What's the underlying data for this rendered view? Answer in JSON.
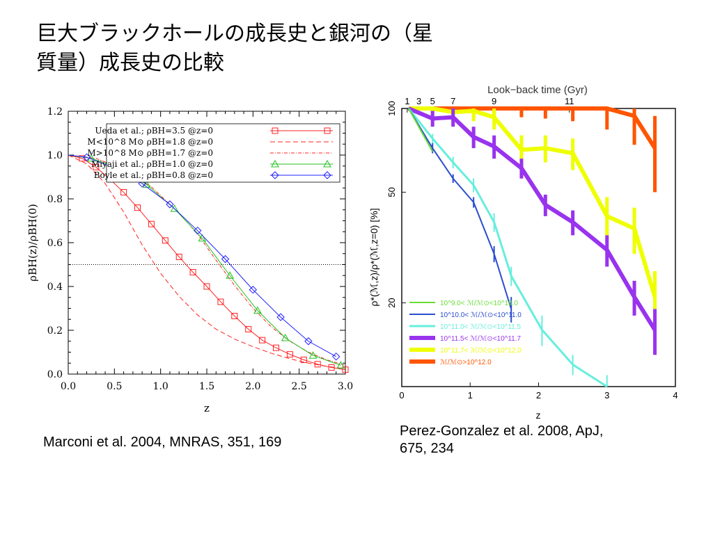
{
  "slide": {
    "title_line1": "巨大ブラックホールの成長史と銀河の（星",
    "title_line2": "質量）成長史の比較",
    "caption_left": "Marconi et al. 2004, MNRAS, 351, 169",
    "caption_right_line1": "Perez-Gonzalez et al. 2008, ApJ,",
    "caption_right_line2": "675, 234"
  },
  "chart_data": [
    {
      "type": "line",
      "xlabel": "z",
      "ylabel": "ρBH(z)/ρBH(0)",
      "xlim": [
        0,
        3
      ],
      "ylim": [
        0,
        1.2
      ],
      "xticks": [
        "0.0",
        "0.5",
        "1.0",
        "1.5",
        "2.0",
        "2.5",
        "3.0"
      ],
      "yticks": [
        "0.0",
        "0.2",
        "0.4",
        "0.6",
        "0.8",
        "1.0",
        "1.2"
      ],
      "hline": 0.5,
      "legend_position": "top-right",
      "series": [
        {
          "name": "Ueda et al.; ρBH=3.5 @z=0",
          "color": "#ff2020",
          "dash": "solid",
          "marker": "square",
          "x": [
            0,
            0.15,
            0.3,
            0.45,
            0.6,
            0.75,
            0.9,
            1.05,
            1.2,
            1.35,
            1.5,
            1.65,
            1.8,
            1.95,
            2.1,
            2.25,
            2.4,
            2.55,
            2.7,
            2.85,
            3.0
          ],
          "y": [
            1.0,
            0.985,
            0.945,
            0.89,
            0.83,
            0.76,
            0.685,
            0.61,
            0.535,
            0.465,
            0.4,
            0.33,
            0.265,
            0.205,
            0.155,
            0.12,
            0.09,
            0.065,
            0.045,
            0.03,
            0.02
          ]
        },
        {
          "name": "M<10^8 M⊙ ρBH=1.8 @z=0",
          "color": "#ff2020",
          "dash": "7,4",
          "marker": "none",
          "x": [
            0,
            0.2,
            0.4,
            0.6,
            0.8,
            1.0,
            1.2,
            1.4,
            1.6,
            1.8,
            2.0,
            2.2,
            2.4,
            2.6,
            2.8,
            3.0
          ],
          "y": [
            1.0,
            0.96,
            0.87,
            0.74,
            0.59,
            0.46,
            0.355,
            0.27,
            0.205,
            0.16,
            0.125,
            0.095,
            0.07,
            0.05,
            0.035,
            0.025
          ]
        },
        {
          "name": "M>10^8 M⊙ ρBH=1.7 @z=0",
          "color": "#ff2020",
          "dash": "5,2,1,2",
          "marker": "none",
          "x": [
            0,
            0.3,
            0.6,
            0.9,
            1.2,
            1.4,
            1.6,
            1.8,
            2.0,
            2.2,
            2.4,
            2.6,
            2.8,
            3.0
          ],
          "y": [
            1.0,
            0.985,
            0.935,
            0.855,
            0.735,
            0.64,
            0.52,
            0.405,
            0.3,
            0.215,
            0.15,
            0.1,
            0.065,
            0.04
          ]
        },
        {
          "name": "Miyaji et al.; ρBH=1.0 @z=0",
          "color": "#20c020",
          "dash": "solid",
          "marker": "triangle",
          "x": [
            0,
            0.25,
            0.55,
            0.85,
            1.15,
            1.45,
            1.75,
            2.05,
            2.35,
            2.65,
            2.95
          ],
          "y": [
            1.0,
            0.985,
            0.94,
            0.865,
            0.755,
            0.62,
            0.45,
            0.29,
            0.165,
            0.085,
            0.04
          ]
        },
        {
          "name": "Boyle et al.; ρBH=0.8 @z=0",
          "color": "#2020ff",
          "dash": "solid",
          "marker": "diamond",
          "x": [
            0,
            0.2,
            0.5,
            0.8,
            1.1,
            1.4,
            1.7,
            2.0,
            2.3,
            2.6,
            2.9
          ],
          "y": [
            1.0,
            0.99,
            0.94,
            0.87,
            0.775,
            0.655,
            0.525,
            0.385,
            0.26,
            0.15,
            0.08
          ]
        }
      ]
    },
    {
      "type": "line",
      "xlabel": "z",
      "ylabel": "ρ*(ℳ,z)/ρ*(ℳ,z=0) [%]",
      "top_axis_label": "Look−back time (Gyr)",
      "top_ticks": [
        {
          "label": "1",
          "z": 0.08
        },
        {
          "label": "3",
          "z": 0.25
        },
        {
          "label": "5",
          "z": 0.45
        },
        {
          "label": "7",
          "z": 0.75
        },
        {
          "label": "9",
          "z": 1.35
        },
        {
          "label": "11",
          "z": 2.45
        }
      ],
      "xticks": [
        "0",
        "1",
        "2",
        "3",
        "4"
      ],
      "yticks": [
        "20",
        "50",
        "100"
      ],
      "yscale": "log",
      "xlim": [
        0,
        4
      ],
      "ylim": [
        10,
        100
      ],
      "legend_position": "bottom-left",
      "series": [
        {
          "name": "10^9.0< ℳ/ℳ⊙<10^10.0",
          "color": "#66dd33",
          "width": 2,
          "x": [
            0.1,
            0.45
          ],
          "y": [
            100,
            70
          ],
          "err": [
            0,
            0
          ]
        },
        {
          "name": "10^10.0< ℳ/ℳ⊙<10^11.0",
          "color": "#2a4ccf",
          "width": 2,
          "x": [
            0.1,
            0.45,
            0.75,
            1.05,
            1.35,
            1.6
          ],
          "y": [
            100,
            72,
            56,
            46,
            30,
            19
          ],
          "err": [
            0,
            3,
            2,
            2,
            2,
            2
          ]
        },
        {
          "name": "10^11.0< ℳ/ℳ⊙<10^11.5",
          "color": "#66eedd",
          "width": 3,
          "x": [
            0.1,
            0.45,
            0.75,
            1.05,
            1.35,
            1.6,
            2.05,
            2.5,
            3.0
          ],
          "y": [
            100,
            78,
            64,
            53,
            39,
            25,
            16,
            12,
            10
          ],
          "err": [
            0,
            3,
            3,
            3,
            3,
            2,
            2,
            1,
            1
          ]
        },
        {
          "name": "10^11.5< ℳ/ℳ⊙<10^11.7",
          "color": "#9933ee",
          "width": 6,
          "x": [
            0.1,
            0.45,
            0.75,
            1.05,
            1.35,
            1.75,
            2.1,
            2.5,
            3.0,
            3.4,
            3.7
          ],
          "y": [
            100,
            92,
            93,
            79,
            73,
            61,
            45,
            39,
            31,
            21,
            16
          ],
          "err": [
            0,
            6,
            7,
            7,
            7,
            5,
            4,
            4,
            4,
            3,
            3
          ]
        },
        {
          "name": "10^11.7< ℳ/ℳ⊙<10^12.0",
          "color": "#eeff00",
          "width": 6,
          "x": [
            0.1,
            0.45,
            0.75,
            1.05,
            1.35,
            1.75,
            2.1,
            2.5,
            3.0,
            3.4,
            3.7
          ],
          "y": [
            100,
            100,
            97,
            98,
            93,
            71,
            72,
            69,
            41,
            37,
            21
          ],
          "err": [
            0,
            6,
            8,
            8,
            9,
            9,
            8,
            9,
            7,
            7,
            5
          ]
        },
        {
          "name": "ℳ/ℳ⊙>10^12.0",
          "color": "#ff5500",
          "width": 6,
          "x": [
            0.1,
            0.45,
            0.75,
            1.05,
            1.35,
            1.75,
            2.1,
            2.5,
            3.0,
            3.4,
            3.7
          ],
          "y": [
            100,
            100,
            100,
            100,
            100,
            100,
            100,
            100,
            100,
            94,
            72
          ],
          "err": [
            0,
            4,
            4,
            5,
            6,
            7,
            8,
            10,
            16,
            20,
            22
          ]
        }
      ]
    }
  ],
  "colors": {
    "red": "#ff2020",
    "green": "#20c020",
    "blue": "#2020ff",
    "right_bg": "#ffffff"
  }
}
